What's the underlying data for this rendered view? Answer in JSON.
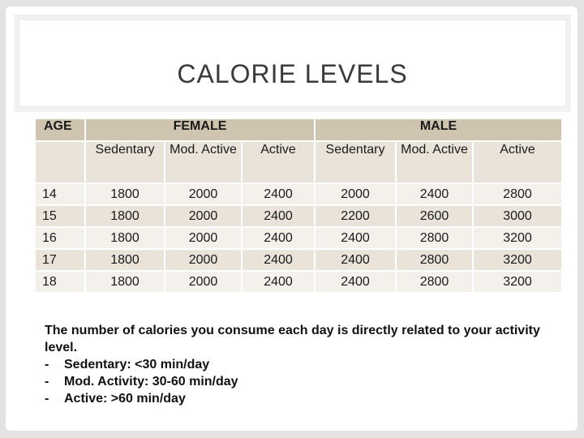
{
  "title": "CALORIE LEVELS",
  "table": {
    "age_header": "AGE",
    "female_header": "FEMALE",
    "male_header": "MALE",
    "sub_headers": [
      "",
      "Sedentary",
      "Mod. Active",
      "Active",
      "Sedentary",
      "Mod. Active",
      "Active"
    ],
    "rows": [
      [
        "14",
        "1800",
        "2000",
        "2400",
        "2000",
        "2400",
        "2800"
      ],
      [
        "15",
        "1800",
        "2000",
        "2400",
        "2200",
        "2600",
        "3000"
      ],
      [
        "16",
        "1800",
        "2000",
        "2400",
        "2400",
        "2800",
        "3200"
      ],
      [
        "17",
        "1800",
        "2000",
        "2400",
        "2400",
        "2800",
        "3200"
      ],
      [
        "18",
        "1800",
        "2000",
        "2400",
        "2400",
        "2800",
        "3200"
      ]
    ]
  },
  "notes": {
    "intro": "The number of calories you consume each day is directly related to your activity level.",
    "items": [
      {
        "dash": "-",
        "text": "Sedentary: <30 min/day"
      },
      {
        "dash": "-",
        "text": "Mod. Activity: 30-60 min/day"
      },
      {
        "dash": "-",
        "text": "Active: >60 min/day"
      }
    ]
  }
}
